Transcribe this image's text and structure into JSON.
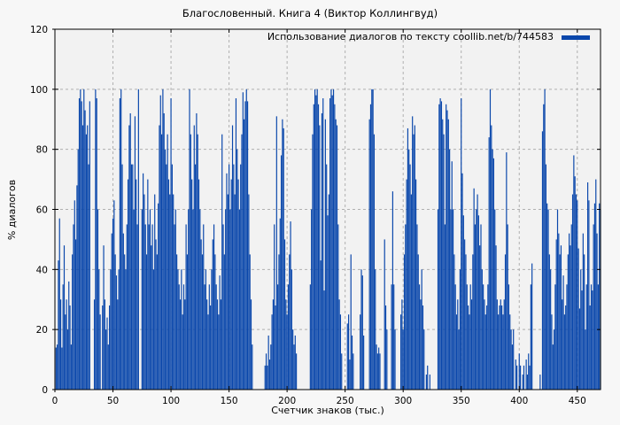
{
  "title": "Благословенный. Книга 4 (Виктор Коллингвуд)",
  "legend": {
    "label": "Использование диалогов по тексту coollib.net/b/744583"
  },
  "axes": {
    "ylabel": "% диалогов",
    "xlabel": "Счетчик знаков (тыс.)"
  },
  "colors": {
    "bar": "#0a47ab",
    "grid": "#b0b0b0",
    "axis": "#000000",
    "plot_bg": "#f2f2f2",
    "page_bg": "#f7f7f7"
  },
  "chart_data": {
    "type": "bar",
    "title": "Благословенный. Книга 4 (Виктор Коллингвуд)",
    "xlabel": "Счетчик знаков (тыс.)",
    "ylabel": "% диалогов",
    "legend_entry": "Использование диалогов по тексту coollib.net/b/744583",
    "legend_position": "top-right-inside",
    "grid": true,
    "xlim": [
      0,
      470
    ],
    "ylim": [
      0,
      120
    ],
    "xticks": [
      0,
      50,
      100,
      150,
      200,
      250,
      300,
      350,
      400,
      450
    ],
    "yticks": [
      0,
      20,
      40,
      60,
      80,
      100,
      120
    ],
    "x_step": 1,
    "values": [
      0,
      14,
      15,
      43,
      57,
      30,
      14,
      35,
      48,
      25,
      30,
      20,
      36,
      28,
      15,
      45,
      55,
      63,
      50,
      68,
      80,
      97,
      100,
      96,
      88,
      100,
      93,
      85,
      88,
      75,
      96,
      0,
      0,
      0,
      30,
      100,
      97,
      60,
      40,
      25,
      0,
      28,
      48,
      30,
      20,
      24,
      15,
      28,
      40,
      52,
      57,
      63,
      45,
      38,
      30,
      40,
      97,
      100,
      75,
      52,
      45,
      40,
      55,
      70,
      88,
      92,
      75,
      75,
      60,
      91,
      70,
      55,
      100,
      0,
      0,
      60,
      72,
      65,
      55,
      45,
      70,
      55,
      60,
      48,
      55,
      40,
      65,
      50,
      45,
      62,
      88,
      98,
      85,
      100,
      92,
      80,
      75,
      85,
      70,
      65,
      97,
      75,
      65,
      55,
      60,
      45,
      40,
      35,
      30,
      40,
      25,
      35,
      30,
      55,
      45,
      60,
      100,
      85,
      70,
      60,
      88,
      75,
      92,
      85,
      70,
      60,
      50,
      45,
      55,
      35,
      40,
      30,
      25,
      35,
      28,
      40,
      50,
      55,
      45,
      35,
      30,
      25,
      38,
      30,
      85,
      55,
      45,
      60,
      72,
      65,
      75,
      60,
      70,
      88,
      75,
      65,
      97,
      80,
      70,
      60,
      75,
      85,
      99,
      90,
      96,
      100,
      96,
      65,
      45,
      30,
      15,
      0,
      0,
      0,
      0,
      0,
      0,
      0,
      0,
      0,
      0,
      8,
      12,
      8,
      18,
      10,
      15,
      25,
      30,
      55,
      28,
      91,
      35,
      45,
      57,
      78,
      90,
      87,
      50,
      30,
      25,
      35,
      45,
      56,
      40,
      20,
      15,
      18,
      12,
      0,
      0,
      0,
      0,
      0,
      0,
      0,
      0,
      0,
      0,
      0,
      35,
      60,
      85,
      95,
      100,
      98,
      100,
      95,
      88,
      43,
      92,
      97,
      33,
      90,
      75,
      58,
      65,
      97,
      100,
      98,
      100,
      95,
      90,
      88,
      55,
      30,
      25,
      12,
      0,
      0,
      0,
      0,
      22,
      25,
      10,
      45,
      18,
      12,
      0,
      0,
      0,
      0,
      0,
      25,
      40,
      38,
      18,
      0,
      0,
      0,
      0,
      90,
      95,
      100,
      100,
      85,
      40,
      15,
      12,
      14,
      12,
      0,
      0,
      0,
      50,
      28,
      20,
      0,
      0,
      0,
      35,
      66,
      35,
      20,
      0,
      0,
      0,
      0,
      25,
      30,
      20,
      45,
      55,
      70,
      87,
      80,
      75,
      65,
      91,
      85,
      88,
      70,
      55,
      45,
      35,
      30,
      40,
      28,
      20,
      0,
      5,
      8,
      0,
      5,
      0,
      0,
      0,
      0,
      0,
      0,
      60,
      95,
      97,
      96,
      90,
      85,
      55,
      95,
      93,
      90,
      80,
      60,
      76,
      60,
      45,
      35,
      25,
      30,
      20,
      40,
      97,
      72,
      58,
      50,
      45,
      35,
      28,
      25,
      35,
      30,
      45,
      67,
      55,
      60,
      65,
      58,
      48,
      55,
      40,
      35,
      30,
      25,
      28,
      35,
      84,
      100,
      88,
      80,
      77,
      60,
      48,
      30,
      25,
      28,
      30,
      28,
      25,
      30,
      45,
      79,
      55,
      35,
      25,
      20,
      15,
      20,
      0,
      10,
      8,
      0,
      12,
      8,
      0,
      5,
      8,
      0,
      10,
      5,
      12,
      8,
      35,
      42,
      0,
      0,
      0,
      0,
      0,
      0,
      5,
      0,
      86,
      95,
      100,
      75,
      62,
      60,
      45,
      40,
      25,
      15,
      20,
      35,
      50,
      60,
      52,
      45,
      48,
      30,
      38,
      25,
      28,
      35,
      45,
      52,
      48,
      55,
      65,
      78,
      71,
      65,
      63,
      47,
      27,
      40,
      33,
      52,
      45,
      20,
      35,
      69,
      63,
      28,
      35,
      33,
      55,
      62,
      70,
      52,
      35,
      62,
      60
    ]
  }
}
